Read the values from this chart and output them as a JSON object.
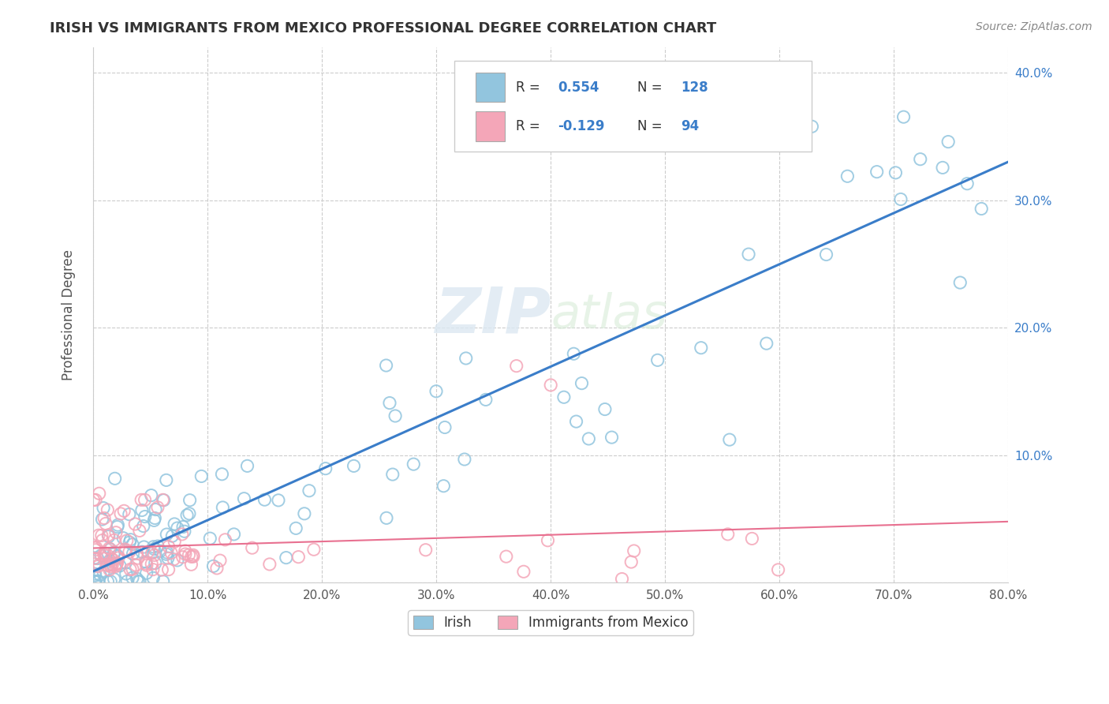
{
  "title": "IRISH VS IMMIGRANTS FROM MEXICO PROFESSIONAL DEGREE CORRELATION CHART",
  "source_text": "Source: ZipAtlas.com",
  "ylabel": "Professional Degree",
  "xlabel": "",
  "xlim": [
    0.0,
    0.8
  ],
  "ylim": [
    0.0,
    0.42
  ],
  "legend_labels": [
    "Irish",
    "Immigrants from Mexico"
  ],
  "r_irish": 0.554,
  "n_irish": 128,
  "r_mexico": -0.129,
  "n_mexico": 94,
  "irish_color": "#92c5de",
  "mexico_color": "#f4a6b8",
  "irish_line_color": "#3a7dc9",
  "mexico_line_color": "#e87090",
  "background_color": "#ffffff",
  "grid_color": "#cccccc",
  "title_color": "#333333",
  "legend_text_color": "#3a7dc9",
  "axis_label_color": "#555555",
  "source_color": "#888888"
}
